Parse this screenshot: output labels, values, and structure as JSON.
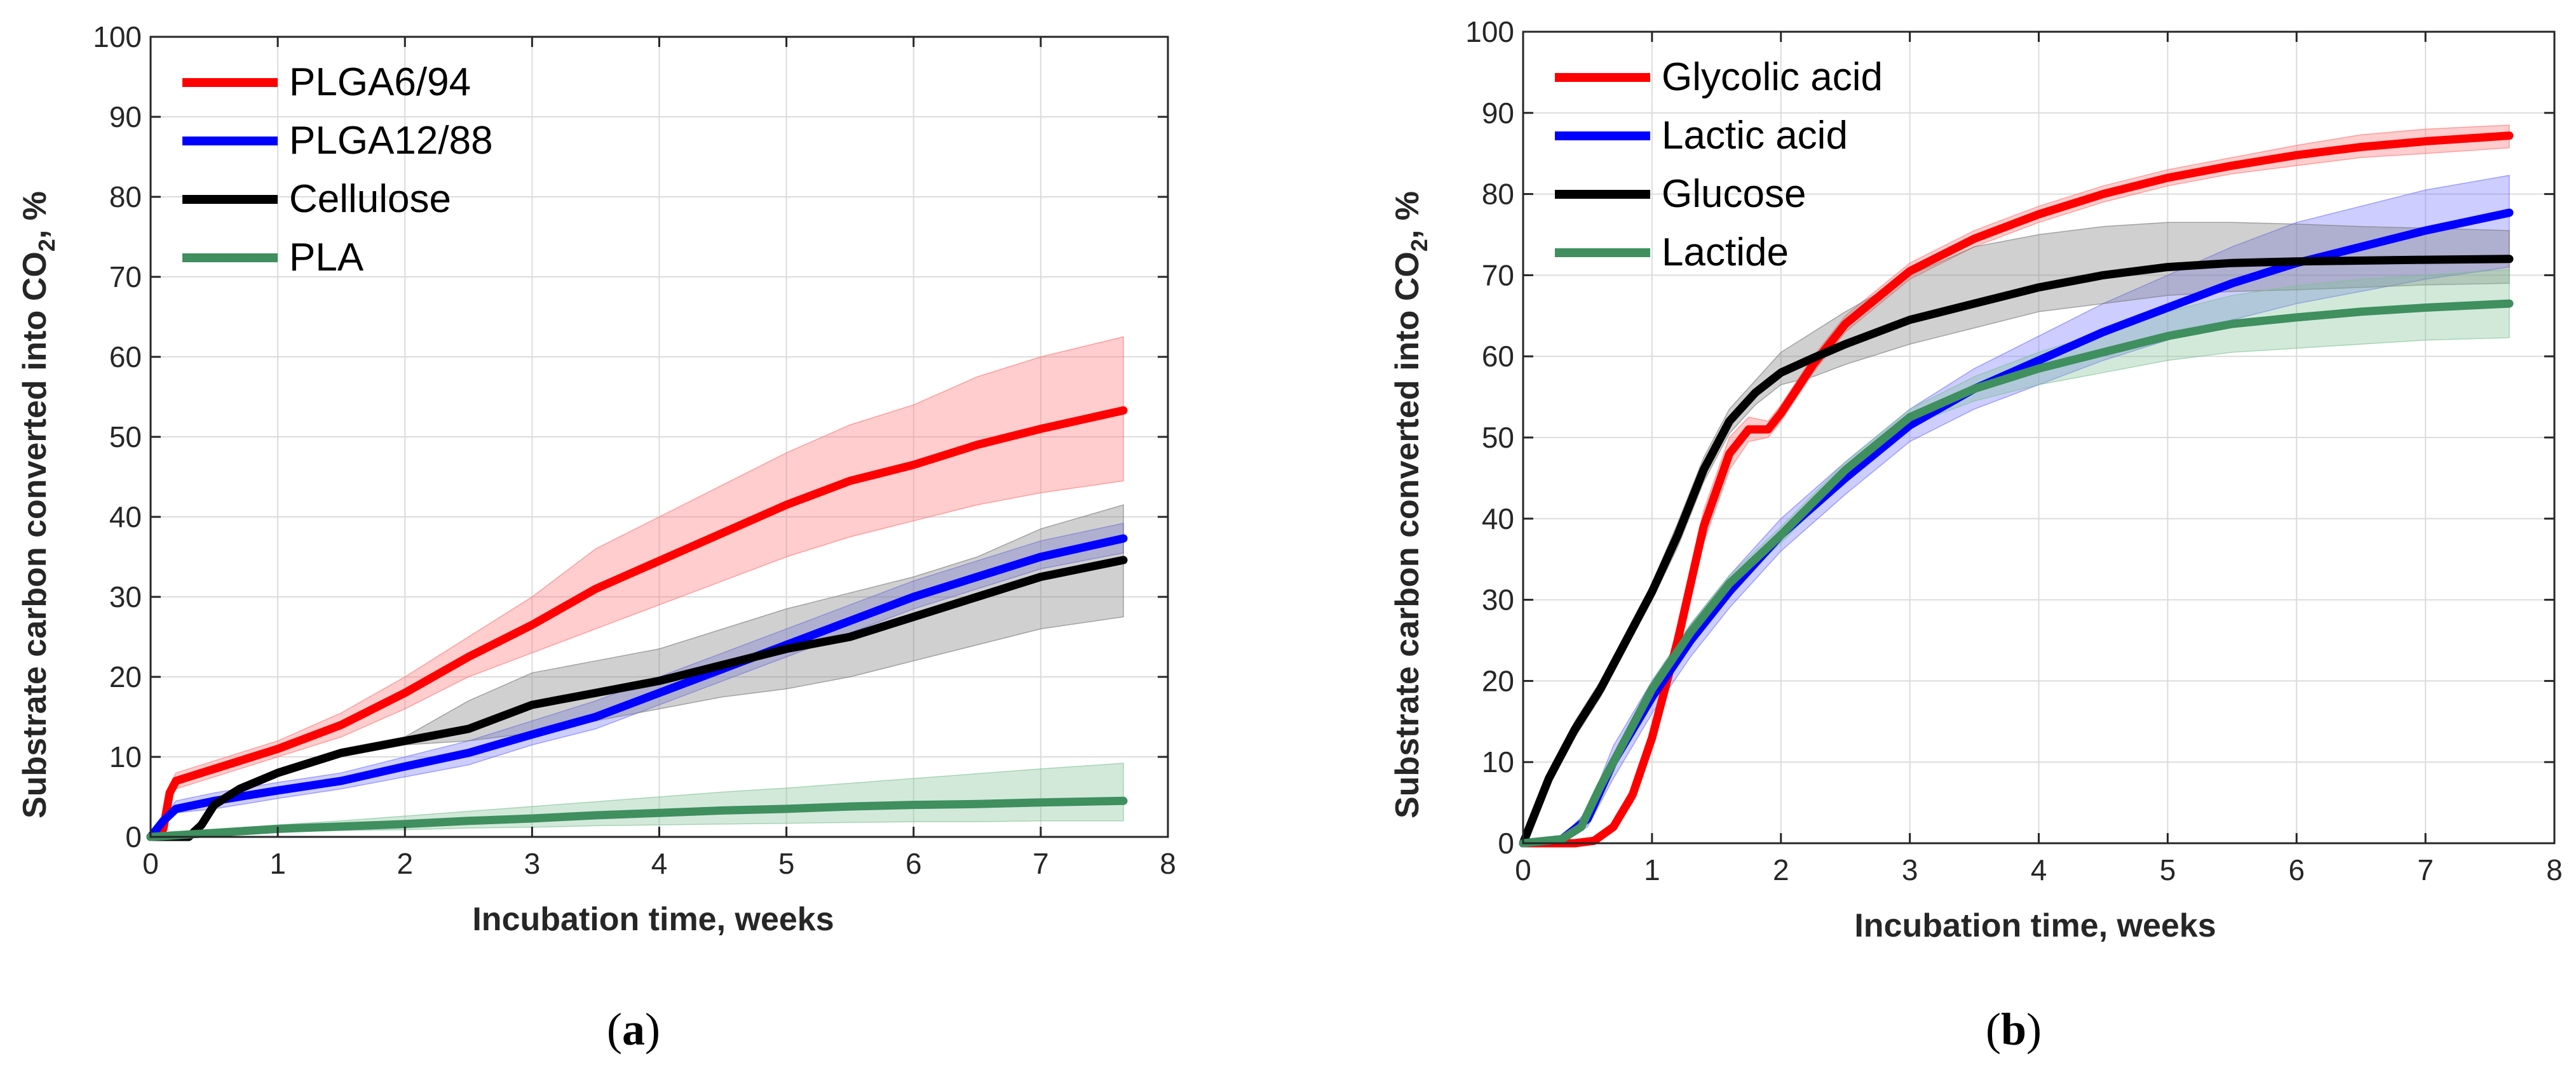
{
  "chart_data": [
    {
      "panel": "a",
      "type": "line",
      "caption_open": "(",
      "caption_letter": "a",
      "caption_close": ")",
      "xlabel": "Incubation time, weeks",
      "ylabel_prefix": "Substrate carbon converted into CO",
      "ylabel_sub": "2",
      "ylabel_suffix": ", %",
      "xlim": [
        0,
        8
      ],
      "ylim": [
        0,
        100
      ],
      "xticks": [
        0,
        1,
        2,
        3,
        4,
        5,
        6,
        7,
        8
      ],
      "yticks": [
        0,
        10,
        20,
        30,
        40,
        50,
        60,
        70,
        80,
        90,
        100
      ],
      "grid": true,
      "legend_position": "top-left",
      "series": [
        {
          "name": "PLGA6/94",
          "color": "#ff0000",
          "band_color": "#ff7070",
          "x": [
            0,
            0.1,
            0.15,
            0.2,
            0.5,
            1,
            1.5,
            2,
            2.5,
            3,
            3.5,
            4,
            4.5,
            5,
            5.5,
            6,
            6.5,
            7,
            7.65
          ],
          "y": [
            0,
            1,
            5.5,
            7,
            8.5,
            11,
            14,
            18,
            22.5,
            26.5,
            31,
            34.5,
            38,
            41.5,
            44.5,
            46.5,
            49,
            51,
            53.3
          ],
          "lower": [
            0,
            0.5,
            4.5,
            6,
            7.5,
            10,
            12.5,
            16,
            20,
            23,
            26,
            29,
            32,
            35,
            37.5,
            39.5,
            41.5,
            43,
            44.5
          ],
          "upper": [
            0,
            1.5,
            6.5,
            8,
            9.5,
            12,
            15.5,
            20,
            25,
            30,
            36,
            40,
            44,
            48,
            51.5,
            54,
            57.5,
            60,
            62.5
          ]
        },
        {
          "name": "PLGA12/88",
          "color": "#0000ff",
          "band_color": "#7070ff",
          "x": [
            0,
            0.1,
            0.2,
            0.5,
            1,
            1.5,
            2,
            2.5,
            3,
            3.5,
            4,
            4.5,
            5,
            5.5,
            6,
            6.5,
            7,
            7.65
          ],
          "y": [
            0,
            2,
            3.5,
            4.5,
            5.8,
            7,
            8.8,
            10.5,
            12.8,
            15,
            18,
            21,
            24,
            27,
            30,
            32.5,
            35,
            37.3
          ],
          "lower": [
            0,
            1.5,
            3,
            3.5,
            4.8,
            6,
            7.5,
            9,
            11.5,
            13.5,
            16.5,
            19.5,
            22.5,
            25.5,
            28.5,
            31,
            33.5,
            35.5
          ],
          "upper": [
            0,
            2.5,
            4.5,
            5.5,
            6.8,
            8,
            10,
            12,
            14.5,
            17,
            20,
            23,
            26,
            29,
            32,
            34.5,
            37,
            39.2
          ]
        },
        {
          "name": "Cellulose",
          "color": "#000000",
          "band_color": "#777777",
          "x": [
            0,
            0.3,
            0.4,
            0.5,
            0.7,
            1,
            1.5,
            2,
            2.5,
            3,
            3.5,
            4,
            4.5,
            5,
            5.5,
            6,
            6.5,
            7,
            7.65
          ],
          "y": [
            0,
            0,
            1.5,
            4,
            6,
            8,
            10.5,
            12,
            13.5,
            16.5,
            18,
            19.5,
            21.5,
            23.5,
            25,
            27.5,
            30,
            32.5,
            34.6
          ],
          "lower": [
            0,
            0,
            1,
            3.5,
            5.5,
            7.5,
            10,
            11.5,
            12,
            13,
            14.5,
            16,
            17.5,
            18.5,
            20,
            22,
            24,
            26,
            27.5
          ],
          "upper": [
            0,
            0,
            2,
            4.5,
            6.5,
            8.5,
            11,
            12.5,
            17,
            20.5,
            22,
            23.5,
            26,
            28.5,
            30.5,
            32.5,
            35,
            38.5,
            41.5
          ]
        },
        {
          "name": "PLA",
          "color": "#3f8f5f",
          "band_color": "#7fbf95",
          "x": [
            0,
            0.5,
            1,
            1.5,
            2,
            2.5,
            3,
            3.5,
            4,
            4.5,
            5,
            5.5,
            6,
            6.5,
            7,
            7.65
          ],
          "y": [
            0,
            0.5,
            1,
            1.3,
            1.6,
            2,
            2.3,
            2.7,
            3,
            3.3,
            3.5,
            3.8,
            4,
            4.1,
            4.3,
            4.5
          ],
          "lower": [
            0,
            0.3,
            0.6,
            0.8,
            0.9,
            1.1,
            1.2,
            1.4,
            1.5,
            1.6,
            1.7,
            1.8,
            1.9,
            1.9,
            2,
            2
          ],
          "upper": [
            0,
            0.8,
            1.5,
            2,
            2.6,
            3.2,
            3.8,
            4.4,
            5,
            5.6,
            6.1,
            6.7,
            7.3,
            7.9,
            8.5,
            9.2
          ]
        }
      ]
    },
    {
      "panel": "b",
      "type": "line",
      "caption_open": "(",
      "caption_letter": "b",
      "caption_close": ")",
      "xlabel": "Incubation time, weeks",
      "ylabel_prefix": "Substrate carbon converted into CO",
      "ylabel_sub": "2",
      "ylabel_suffix": ", %",
      "xlim": [
        0,
        8
      ],
      "ylim": [
        0,
        100
      ],
      "xticks": [
        0,
        1,
        2,
        3,
        4,
        5,
        6,
        7,
        8
      ],
      "yticks": [
        0,
        10,
        20,
        30,
        40,
        50,
        60,
        70,
        80,
        90,
        100
      ],
      "grid": true,
      "legend_position": "top-left",
      "series": [
        {
          "name": "Glycolic acid",
          "color": "#ff0000",
          "band_color": "#ff7070",
          "x": [
            0,
            0.4,
            0.55,
            0.7,
            0.85,
            1,
            1.2,
            1.4,
            1.6,
            1.75,
            1.9,
            2,
            2.25,
            2.5,
            3,
            3.5,
            4,
            4.5,
            5,
            5.5,
            6,
            6.5,
            7,
            7.65
          ],
          "y": [
            0,
            0,
            0.3,
            2,
            6,
            13,
            25,
            39,
            48,
            51,
            51,
            53,
            59,
            64,
            70.5,
            74.5,
            77.5,
            80,
            82,
            83.5,
            84.8,
            85.8,
            86.5,
            87.2
          ],
          "lower": [
            0,
            0,
            0.1,
            1.5,
            5,
            12,
            23,
            37,
            46,
            49.5,
            50,
            52,
            58,
            63,
            69.5,
            73.5,
            76.5,
            79,
            81,
            82.5,
            83.5,
            84.5,
            85,
            85.7
          ],
          "upper": [
            0,
            0,
            0.5,
            2.5,
            7,
            14,
            27,
            41,
            50,
            52.5,
            52,
            54,
            60,
            65,
            71.5,
            75.5,
            78.5,
            81,
            83,
            84.5,
            86,
            87.3,
            88,
            88.5
          ]
        },
        {
          "name": "Lactic acid",
          "color": "#0000ff",
          "band_color": "#7070ff",
          "x": [
            0,
            0.3,
            0.5,
            0.7,
            1,
            1.3,
            1.6,
            2,
            2.5,
            3,
            3.5,
            4,
            4.5,
            5,
            5.5,
            6,
            6.5,
            7,
            7.65
          ],
          "y": [
            0,
            0.5,
            3,
            10,
            18,
            25,
            31,
            38,
            45,
            51.5,
            56,
            59.5,
            63,
            66,
            69,
            71.5,
            73.5,
            75.5,
            77.7
          ],
          "lower": [
            0,
            0.3,
            2,
            8,
            16,
            23,
            29,
            36,
            43,
            49.5,
            53.5,
            56.5,
            59.5,
            62,
            64.5,
            66.5,
            68,
            69.5,
            71
          ],
          "upper": [
            0,
            0.8,
            4,
            12,
            20,
            27,
            33,
            40,
            47,
            53.5,
            58.5,
            62.5,
            66.5,
            70,
            73.5,
            76.5,
            78.5,
            80.5,
            82.3
          ]
        },
        {
          "name": "Glucose",
          "color": "#000000",
          "band_color": "#777777",
          "x": [
            0,
            0.05,
            0.2,
            0.4,
            0.6,
            0.8,
            1,
            1.2,
            1.4,
            1.6,
            1.8,
            2,
            2.25,
            2.5,
            3,
            3.5,
            4,
            4.5,
            5,
            5.5,
            6,
            6.5,
            7,
            7.65
          ],
          "y": [
            0,
            2,
            8,
            14,
            19,
            25,
            31,
            38,
            46,
            52,
            55.5,
            58,
            59.8,
            61.5,
            64.5,
            66.5,
            68.5,
            70,
            71,
            71.5,
            71.7,
            71.8,
            71.9,
            72
          ],
          "lower": [
            0,
            1.5,
            7,
            13,
            18,
            24,
            30,
            36.5,
            44.5,
            50.5,
            54,
            56.5,
            57.5,
            59,
            61.5,
            63.5,
            65.5,
            66.5,
            67.5,
            68,
            68.2,
            68.5,
            68.8,
            69
          ],
          "upper": [
            0,
            2.5,
            9,
            15,
            20,
            26,
            32,
            39.5,
            47.5,
            53.5,
            57,
            60.5,
            63,
            65.5,
            70,
            73.5,
            75,
            76,
            76.5,
            76.5,
            76.3,
            76,
            75.8,
            75.5
          ]
        },
        {
          "name": "Lactide",
          "color": "#3f8f5f",
          "band_color": "#7fbf95",
          "x": [
            0,
            0.3,
            0.45,
            0.6,
            0.8,
            1,
            1.3,
            1.6,
            2,
            2.5,
            3,
            3.5,
            4,
            4.5,
            5,
            5.5,
            6,
            6.5,
            7,
            7.65
          ],
          "y": [
            0,
            0.5,
            2,
            7,
            13,
            19,
            26,
            32,
            38,
            46,
            52.5,
            56,
            58.5,
            60.5,
            62.5,
            64,
            64.8,
            65.5,
            66,
            66.5
          ],
          "lower": [
            0,
            0.3,
            1.5,
            6,
            12,
            18,
            25,
            31,
            37,
            45,
            51.5,
            54.5,
            56.5,
            58,
            59.5,
            60.5,
            61,
            61.5,
            62,
            62.3
          ],
          "upper": [
            0,
            0.8,
            2.5,
            8,
            14,
            20,
            27,
            33,
            39,
            47,
            53.5,
            57.5,
            60.5,
            63,
            65.5,
            67.5,
            68.7,
            69.5,
            70,
            70.7
          ]
        }
      ]
    }
  ]
}
